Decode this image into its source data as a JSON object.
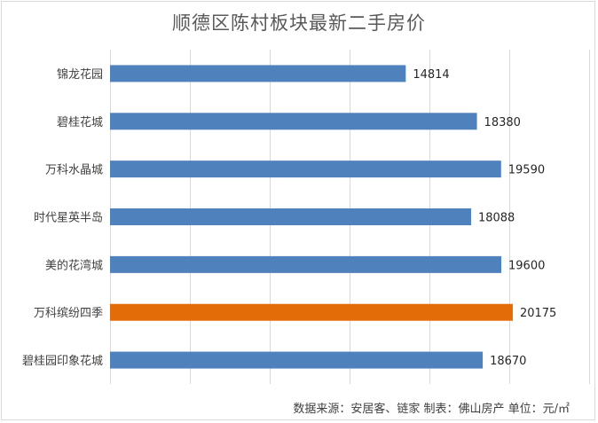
{
  "chart_data": {
    "type": "bar",
    "orientation": "horizontal",
    "title": "顺德区陈村板块最新二手房价",
    "categories": [
      "锦龙花园",
      "碧桂花城",
      "万科水晶城",
      "时代星英半岛",
      "美的花湾城",
      "万科缤纷四季",
      "碧桂园印象花城"
    ],
    "series": [
      {
        "values": [
          14814,
          18380,
          19590,
          18088,
          19600,
          20175,
          18670
        ]
      }
    ],
    "colors": [
      "#4f81bd",
      "#4f81bd",
      "#4f81bd",
      "#4f81bd",
      "#4f81bd",
      "#e36c09",
      "#4f81bd"
    ],
    "highlight_index": 5,
    "xlim": [
      0,
      24000
    ],
    "grid": true,
    "legend": "none"
  },
  "footer": {
    "source": "数据来源：安居客、链家   制表：佛山房产  单位：元/㎡"
  }
}
